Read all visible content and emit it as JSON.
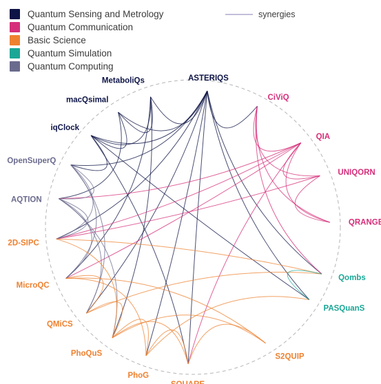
{
  "legend": {
    "categories": [
      {
        "key": "sensing",
        "label": "Quantum Sensing and Metrology",
        "color": "#0d1446"
      },
      {
        "key": "communication",
        "label": "Quantum Communication",
        "color": "#d62f7a"
      },
      {
        "key": "basic",
        "label": "Basic Science",
        "color": "#ee8130"
      },
      {
        "key": "simulation",
        "label": "Quantum Simulation",
        "color": "#1aa796"
      },
      {
        "key": "computing",
        "label": "Quantum Computing",
        "color": "#6b6b8e"
      }
    ],
    "synergies_label": "synergies",
    "synergies_color": "#9a98c4"
  },
  "nodes": [
    {
      "id": "ASTERIQS",
      "label": "ASTERIQS",
      "category": "sensing"
    },
    {
      "id": "CiViQ",
      "label": "CiViQ",
      "category": "communication"
    },
    {
      "id": "QIA",
      "label": "QIA",
      "category": "communication"
    },
    {
      "id": "UNIQORN",
      "label": "UNIQORN",
      "category": "communication"
    },
    {
      "id": "QRANGE",
      "label": "QRANGE",
      "category": "communication"
    },
    {
      "id": "Qombs",
      "label": "Qombs",
      "category": "simulation"
    },
    {
      "id": "PASQuanS",
      "label": "PASQuanS",
      "category": "simulation"
    },
    {
      "id": "S2QUIP",
      "label": "S2QUIP",
      "category": "basic"
    },
    {
      "id": "SQUARE",
      "label": "SQUARE",
      "category": "basic"
    },
    {
      "id": "PhoG",
      "label": "PhoG",
      "category": "basic"
    },
    {
      "id": "PhoQuS",
      "label": "PhoQuS",
      "category": "basic"
    },
    {
      "id": "QMiCS",
      "label": "QMiCS",
      "category": "basic"
    },
    {
      "id": "MicroQC",
      "label": "MicroQC",
      "category": "basic"
    },
    {
      "id": "2D-SIPC",
      "label": "2D-SIPC",
      "category": "basic"
    },
    {
      "id": "AQTION",
      "label": "AQTION",
      "category": "computing"
    },
    {
      "id": "OpenSuperQ",
      "label": "OpenSuperQ",
      "category": "computing"
    },
    {
      "id": "iqClock",
      "label": "iqClock",
      "category": "sensing"
    },
    {
      "id": "macQsimal",
      "label": "macQsimal",
      "category": "sensing"
    },
    {
      "id": "MetaboliQs",
      "label": "MetaboliQs",
      "category": "sensing"
    }
  ],
  "links": [
    [
      "ASTERIQS",
      "MetaboliQs"
    ],
    [
      "ASTERIQS",
      "macQsimal"
    ],
    [
      "ASTERIQS",
      "iqClock"
    ],
    [
      "ASTERIQS",
      "OpenSuperQ"
    ],
    [
      "ASTERIQS",
      "SQUARE"
    ],
    [
      "ASTERIQS",
      "PhoG"
    ],
    [
      "ASTERIQS",
      "QMiCS"
    ],
    [
      "ASTERIQS",
      "2D-SIPC"
    ],
    [
      "ASTERIQS",
      "CiViQ"
    ],
    [
      "ASTERIQS",
      "Qombs"
    ],
    [
      "ASTERIQS",
      "PASQuanS"
    ],
    [
      "MetaboliQs",
      "macQsimal"
    ],
    [
      "MetaboliQs",
      "iqClock"
    ],
    [
      "MetaboliQs",
      "PhoQuS"
    ],
    [
      "MetaboliQs",
      "MicroQC"
    ],
    [
      "macQsimal",
      "iqClock"
    ],
    [
      "macQsimal",
      "AQTION"
    ],
    [
      "iqClock",
      "OpenSuperQ"
    ],
    [
      "iqClock",
      "SQUARE"
    ],
    [
      "iqClock",
      "PASQuanS"
    ],
    [
      "CiViQ",
      "QIA"
    ],
    [
      "CiViQ",
      "UNIQORN"
    ],
    [
      "CiViQ",
      "QRANGE"
    ],
    [
      "CiViQ",
      "Qombs"
    ],
    [
      "QIA",
      "UNIQORN"
    ],
    [
      "QIA",
      "QRANGE"
    ],
    [
      "QIA",
      "AQTION"
    ],
    [
      "QIA",
      "2D-SIPC"
    ],
    [
      "QIA",
      "MicroQC"
    ],
    [
      "QIA",
      "SQUARE"
    ],
    [
      "UNIQORN",
      "QRANGE"
    ],
    [
      "UNIQORN",
      "2D-SIPC"
    ],
    [
      "OpenSuperQ",
      "AQTION"
    ],
    [
      "OpenSuperQ",
      "2D-SIPC"
    ],
    [
      "OpenSuperQ",
      "MicroQC"
    ],
    [
      "OpenSuperQ",
      "QMiCS"
    ],
    [
      "AQTION",
      "2D-SIPC"
    ],
    [
      "AQTION",
      "MicroQC"
    ],
    [
      "AQTION",
      "QMiCS"
    ],
    [
      "AQTION",
      "PhoQuS"
    ],
    [
      "2D-SIPC",
      "PhoQuS"
    ],
    [
      "2D-SIPC",
      "Qombs"
    ],
    [
      "MicroQC",
      "QMiCS"
    ],
    [
      "MicroQC",
      "PhoG"
    ],
    [
      "MicroQC",
      "S2QUIP"
    ],
    [
      "QMiCS",
      "PhoQuS"
    ],
    [
      "QMiCS",
      "Qombs"
    ],
    [
      "PhoQuS",
      "PhoG"
    ],
    [
      "PhoQuS",
      "SQUARE"
    ],
    [
      "PhoQuS",
      "S2QUIP"
    ],
    [
      "PhoG",
      "SQUARE"
    ],
    [
      "PhoG",
      "PASQuanS"
    ],
    [
      "SQUARE",
      "S2QUIP"
    ],
    [
      "Qombs",
      "PASQuanS"
    ]
  ]
}
